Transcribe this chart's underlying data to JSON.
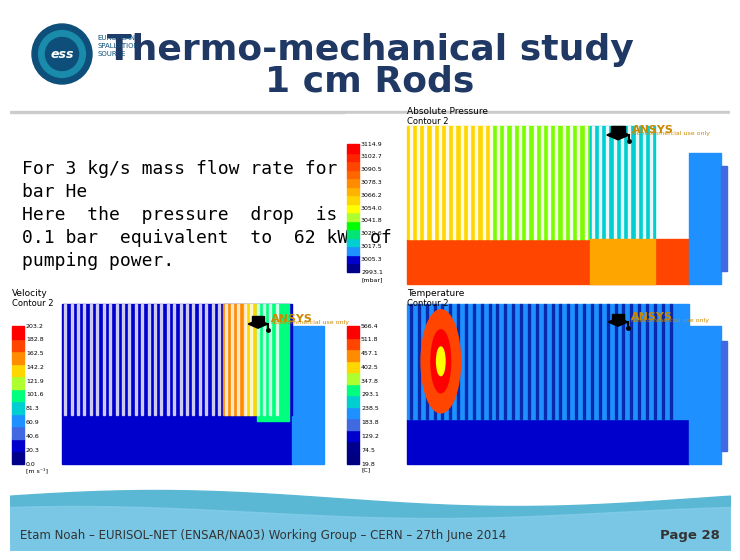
{
  "title_line1": "Thermo-mechanical study",
  "title_line2": "1 cm Rods",
  "title_color": "#1F3864",
  "title_fontsize": 26,
  "body_lines": [
    "For 3 kg/s mass flow rate for 3",
    "bar He",
    "Here  the  pressure  drop  is",
    "0.1 bar  equivalent  to  62 kW  of",
    "pumping power."
  ],
  "body_fontsize": 13,
  "body_color": "#000000",
  "footer_text": "Etam Noah – EURISOL-NET (ENSAR/NA03) Working Group – CERN – 27th June 2014",
  "page_text": "Page 28",
  "footer_fontsize": 8.5,
  "bg_color": "#ffffff",
  "footer_text_color": "#333333",
  "cb_pressure": [
    "#FF0000",
    "#FF2200",
    "#FF4500",
    "#FF6600",
    "#FF8C00",
    "#FFB300",
    "#FFD700",
    "#FFFF00",
    "#ADFF2F",
    "#00FF00",
    "#00E676",
    "#00CED1",
    "#1E90FF",
    "#0000CD",
    "#00008B"
  ],
  "cb_velocity": [
    "#FF0000",
    "#FF4500",
    "#FF8C00",
    "#FFD700",
    "#ADFF2F",
    "#00FF7F",
    "#00CED1",
    "#1E90FF",
    "#4169E1",
    "#0000CD",
    "#00008B"
  ],
  "cb_temperature": [
    "#FF0000",
    "#FF4500",
    "#FF8C00",
    "#FFD700",
    "#ADFF2F",
    "#00FF7F",
    "#00CED1",
    "#1E90FF",
    "#4169E1",
    "#0000CD",
    "#00008B",
    "#000080"
  ]
}
